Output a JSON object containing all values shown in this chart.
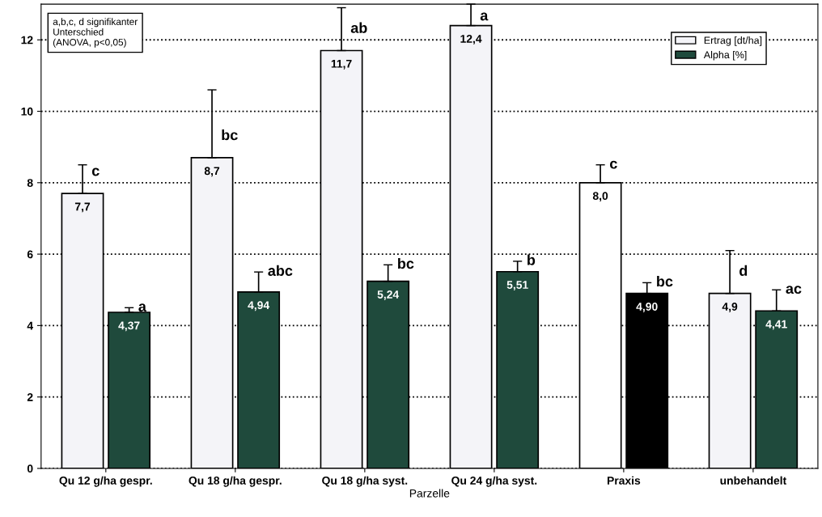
{
  "chart_data": {
    "type": "bar",
    "categories": [
      "Qu 12 g/ha gespr.",
      "Qu 18 g/ha gespr.",
      "Qu 18 g/ha syst.",
      "Qu 24 g/ha syst.",
      "Praxis",
      "unbehandelt"
    ],
    "xlabel": "Parzelle",
    "series": [
      {
        "name": "Ertrag [dt/ha]",
        "color": "#f4f4f8",
        "colors": [
          "#f4f4f8",
          "#f4f4f8",
          "#f4f4f8",
          "#f4f4f8",
          "#ffffff",
          "#f4f4f8"
        ],
        "values": [
          7.7,
          8.7,
          11.7,
          12.4,
          8.0,
          4.9
        ],
        "value_labels": [
          "7,7",
          "8,7",
          "11,7",
          "12,4",
          "8,0",
          "4,9"
        ],
        "errors": [
          [
            7.7,
            8.5
          ],
          [
            8.7,
            10.6
          ],
          [
            11.7,
            12.9
          ],
          [
            12.4,
            13.0
          ],
          [
            8.0,
            8.5
          ],
          [
            4.9,
            6.1
          ]
        ]
      },
      {
        "name": "Alpha [%]",
        "color": "#1f4a3c",
        "colors": [
          "#1f4a3c",
          "#1f4a3c",
          "#1f4a3c",
          "#1f4a3c",
          "#000000",
          "#1f4a3c"
        ],
        "values": [
          4.37,
          4.94,
          5.24,
          5.51,
          4.9,
          4.41
        ],
        "value_labels": [
          "4,37",
          "4,94",
          "5,24",
          "5,51",
          "4,90",
          "4,41"
        ],
        "errors": [
          [
            4.37,
            4.5
          ],
          [
            4.94,
            5.5
          ],
          [
            5.24,
            5.7
          ],
          [
            5.51,
            5.8
          ],
          [
            4.9,
            5.2
          ],
          [
            4.41,
            5.0
          ]
        ]
      }
    ],
    "ylim": [
      0,
      13
    ],
    "yticks": [
      0,
      2,
      4,
      6,
      8,
      10,
      12
    ],
    "grid": "y",
    "legend": "top right",
    "annotations": [
      "a,b,c, d signifikanter\nUnterschied\n(ANOVA, p<0,05)",
      {
        "text": "c",
        "x": "Qu 12 g/ha gespr.",
        "y": 7.7
      },
      {
        "text": "a",
        "x": "Qu 12 g/ha gespr.",
        "y": 4.37
      },
      {
        "text": "bc",
        "x": "Qu 18 g/ha gespr.",
        "y": 8.7
      },
      {
        "text": "abc",
        "x": "Qu 18 g/ha gespr.",
        "y": 4.94
      },
      {
        "text": "ab",
        "x": "Qu 18 g/ha syst.",
        "y": 11.7
      },
      {
        "text": "bc",
        "x": "Qu 18 g/ha syst.",
        "y": 5.24
      },
      {
        "text": "a",
        "x": "Qu 24 g/ha syst.",
        "y": 12.4
      },
      {
        "text": "b",
        "x": "Qu 24 g/ha syst.",
        "y": 5.51
      },
      {
        "text": "c",
        "x": "Praxis",
        "y": 8.0
      },
      {
        "text": "bc",
        "x": "Praxis",
        "y": 4.9
      },
      {
        "text": "d",
        "x": "unbehandelt",
        "y": 4.9
      },
      {
        "text": "ac",
        "x": "unbehandelt",
        "y": 4.41
      }
    ]
  }
}
